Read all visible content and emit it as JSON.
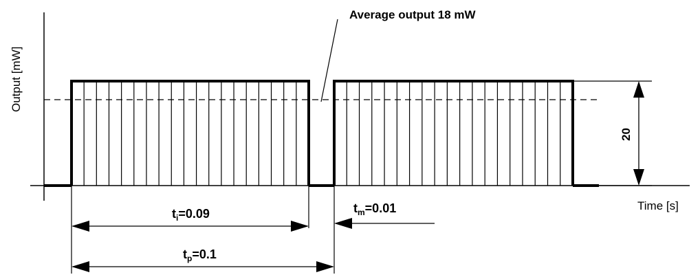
{
  "diagram": {
    "y_axis_label": "Output [mW]",
    "x_axis_label": "Time [s]",
    "average_label": "Average output 18 mW",
    "amplitude_label": "20",
    "ti": {
      "symbol": "t",
      "sub": "i",
      "value": "=0.09"
    },
    "tm": {
      "symbol": "t",
      "sub": "m",
      "value": "=0.01"
    },
    "tp": {
      "symbol": "t",
      "sub": "p",
      "value": "=0.1"
    },
    "pulse_output_mW": 20,
    "average_output_mW": 18,
    "period_s": 0.1,
    "on_time_s": 0.09,
    "off_time_s": 0.01,
    "stripes_per_pulse": 18,
    "colors": {
      "line": "#000000",
      "background": "#ffffff"
    }
  }
}
